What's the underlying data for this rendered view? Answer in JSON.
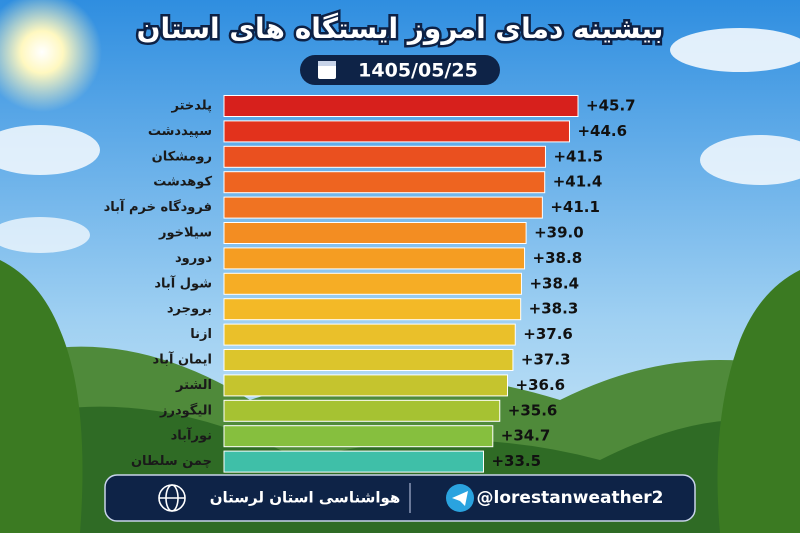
{
  "chart_data": {
    "type": "bar",
    "title": "بیشینه دمای امروز ایستگاه های استان",
    "subtitle": "1405/05/25",
    "categories": [
      "پلدختر",
      "سپیددشت",
      "رومشکان",
      "کوهدشت",
      "فرودگاه خرم آباد",
      "سیلاخور",
      "دورود",
      "شول آباد",
      "بروجرد",
      "ازنا",
      "ایمان آباد",
      "الشتر",
      "الیگودرز",
      "نورآباد",
      "چمن سلطان"
    ],
    "values": [
      45.7,
      44.6,
      41.5,
      41.4,
      41.1,
      39.0,
      38.8,
      38.4,
      38.3,
      37.6,
      37.3,
      36.6,
      35.6,
      34.7,
      33.5
    ],
    "value_labels": [
      "+45.7",
      "+44.6",
      "+41.5",
      "+41.4",
      "+41.1",
      "+39.0",
      "+38.8",
      "+38.4",
      "+38.3",
      "+37.6",
      "+37.3",
      "+36.6",
      "+35.6",
      "+34.7",
      "+33.5"
    ],
    "colors": [
      "#d7201c",
      "#e2321c",
      "#ea501f",
      "#ee6420",
      "#f07322",
      "#f38d22",
      "#f59d22",
      "#f6ad25",
      "#f3b927",
      "#eac02a",
      "#dcc52c",
      "#c5c42e",
      "#a6c232",
      "#86bf3e",
      "#3fbfa8"
    ]
  },
  "footer": {
    "agency": "هواشناسی استان لرستان",
    "handle": "@lorestanweather2"
  }
}
